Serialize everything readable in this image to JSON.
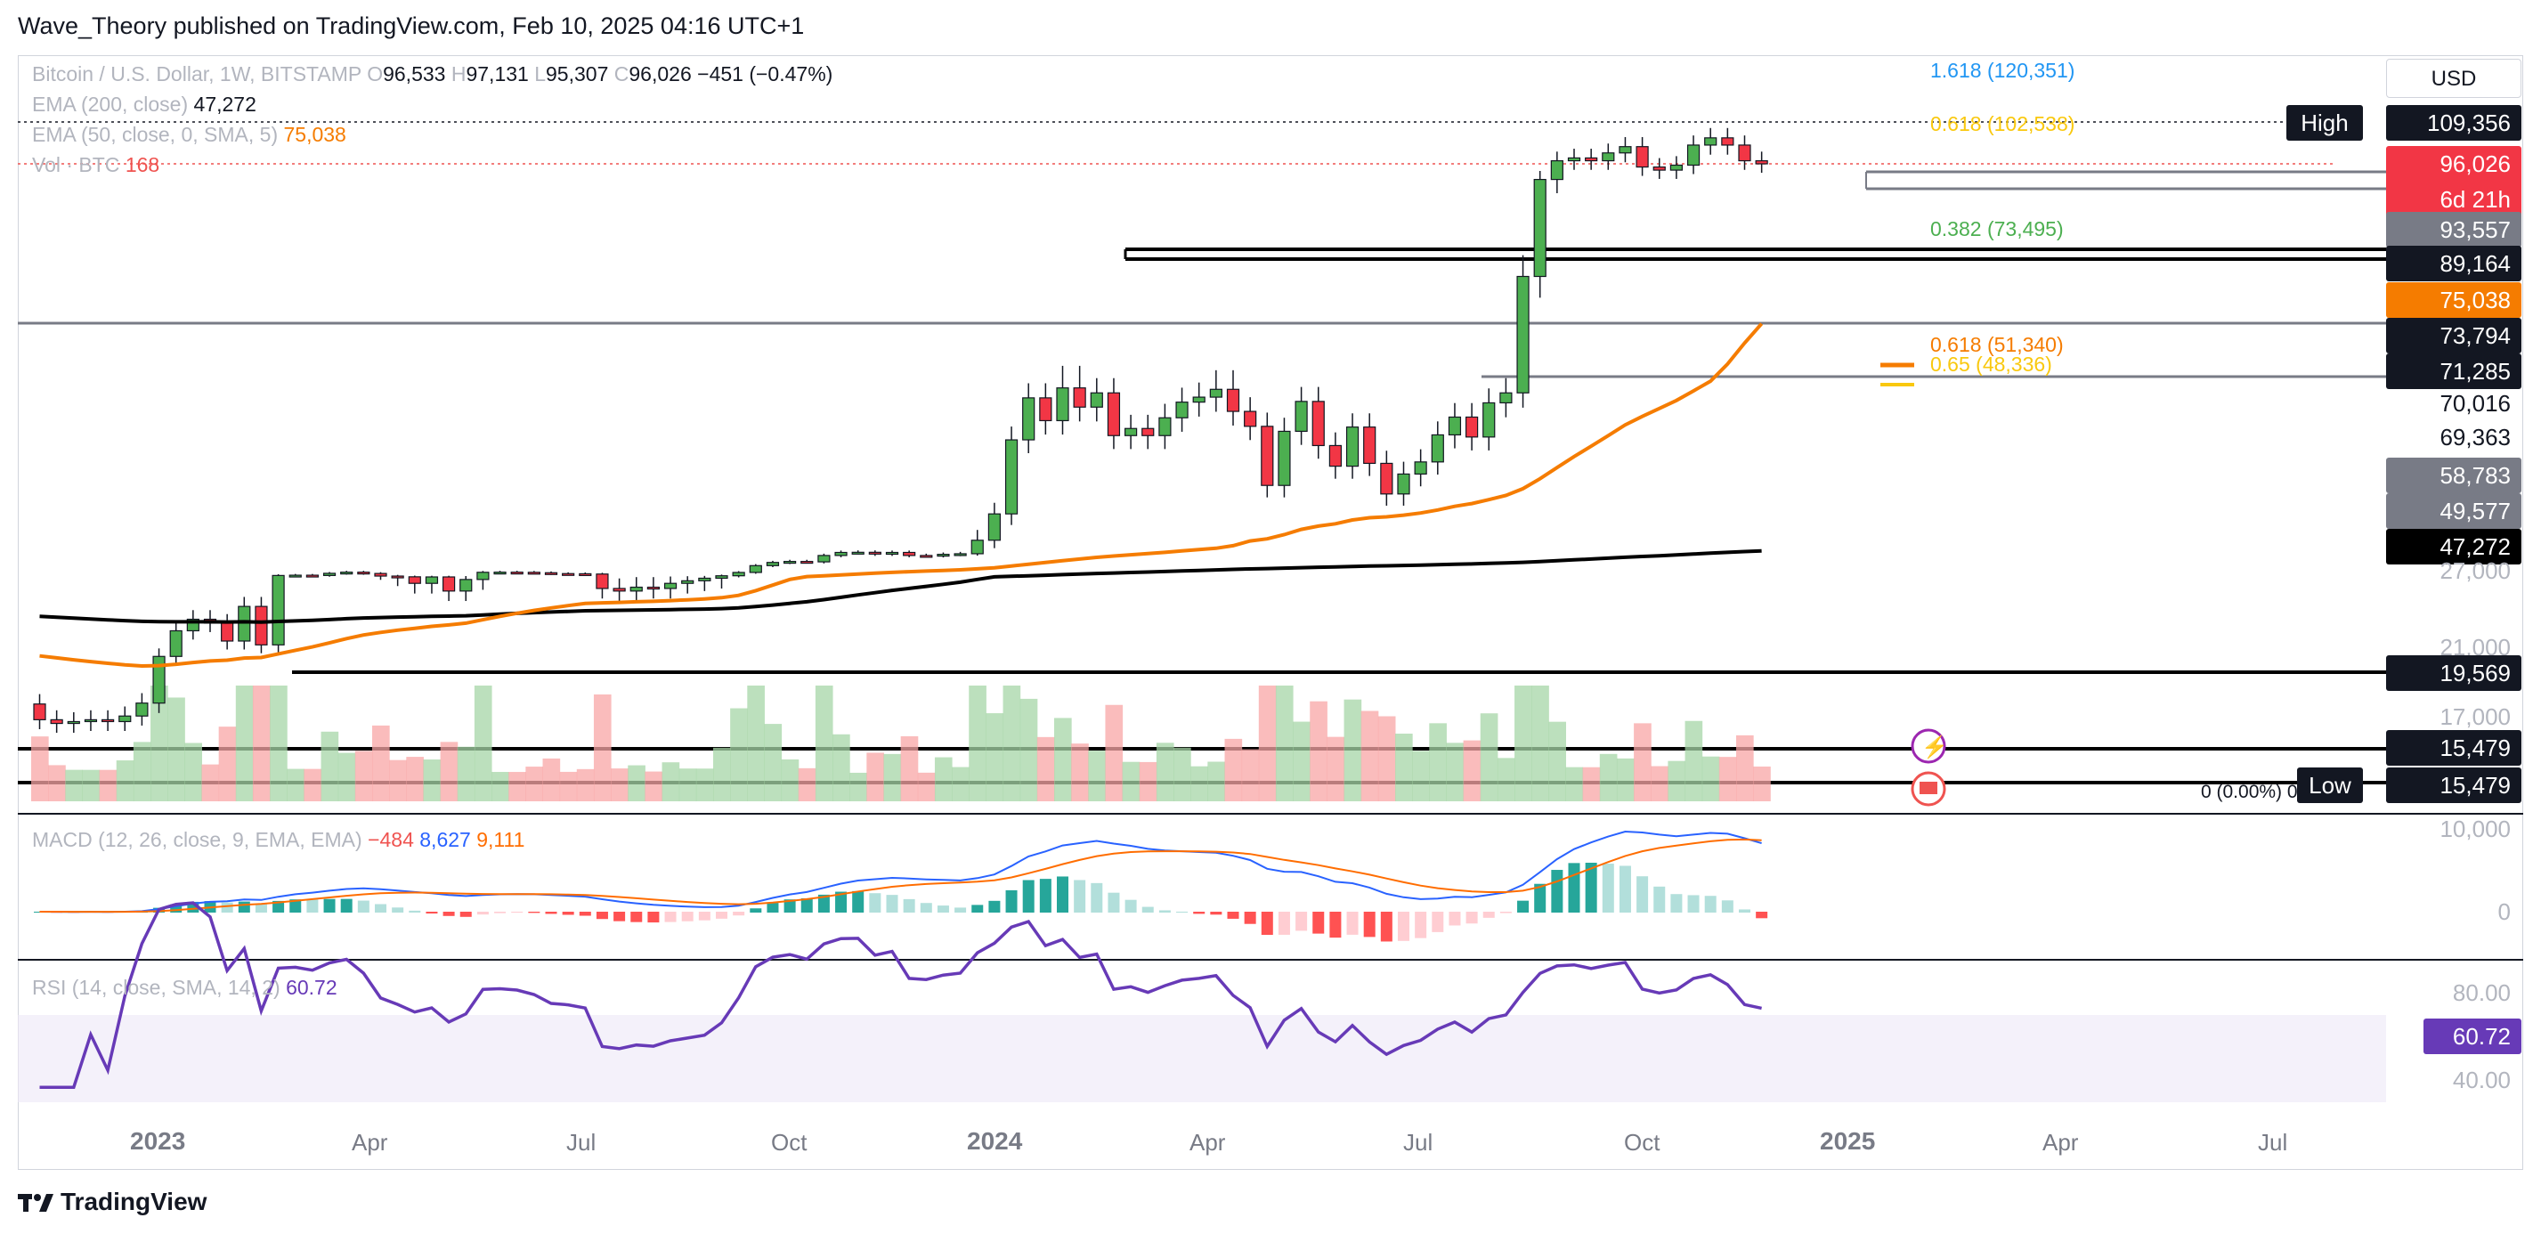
{
  "header": {
    "text": "Wave_Theory published on TradingView.com, Feb 10, 2025 04:16 UTC+1"
  },
  "currency": "USD",
  "legend": {
    "symbol": "Bitcoin / U.S. Dollar, 1W, BITSTAMP",
    "open_label": "O",
    "open": "96,533",
    "high_label": "H",
    "high": "97,131",
    "low_label": "L",
    "low": "95,307",
    "close_label": "C",
    "close": "96,026",
    "change": "−451 (−0.47%)",
    "ema200_label": "EMA (200, close)",
    "ema200_value": "47,272",
    "ema50_label": "EMA (50, close, 0, SMA, 5)",
    "ema50_value": "75,038",
    "vol_label": "Vol · BTC",
    "vol_value": "168"
  },
  "fib_labels": {
    "f1618": "1.618 (120,351)",
    "f0618a": "0.618 (102,538)",
    "f0382": "0.382 (73,495)",
    "f0618b": "0.618 (51,340)",
    "f065": "0.65 (48,336)"
  },
  "price_labels": {
    "high_tag": "High",
    "high_value": "109,356",
    "last": "96,026",
    "countdown": "6d 21h",
    "p93557": "93,557",
    "p89164": "89,164",
    "ema50": "75,038",
    "p73794": "73,794",
    "p71285": "71,285",
    "p70016": "70,016",
    "p69363": "69,363",
    "p58783": "58,783",
    "p49577": "49,577",
    "ema200": "47,272",
    "p19569": "19,569",
    "p15479a": "15,479",
    "low_tag": "Low",
    "p15479b": "15,479",
    "low_note": "0 (0.00%) 0"
  },
  "axis_labels": {
    "a27000": "27,000",
    "a21000": "21,000",
    "a17000": "17,000"
  },
  "macd": {
    "label": "MACD (12, 26, close, 9, EMA, EMA)",
    "hist": "−484",
    "macd": "8,627",
    "signal": "9,111",
    "axis_top": "10,000",
    "axis_zero": "0"
  },
  "rsi": {
    "label": "RSI (14, close, SMA, 14, 2)",
    "value": "60.72",
    "axis_80": "80.00",
    "axis_40": "40.00"
  },
  "time_axis": {
    "y2023": "2023",
    "apr1": "Apr",
    "jul1": "Jul",
    "oct1": "Oct",
    "y2024": "2024",
    "apr2": "Apr",
    "jul2": "Jul",
    "oct2": "Oct",
    "y2025": "2025",
    "apr3": "Apr",
    "jul3": "Jul"
  },
  "footer": {
    "brand": "TradingView"
  },
  "colors": {
    "up": "#26a69a",
    "down": "#ef5350",
    "ema50": "#f57c00",
    "ema200": "#000000",
    "fib_blue": "#2196f3",
    "fib_yellow": "#f9c80e",
    "fib_green": "#4caf50",
    "fib_orange": "#f57c00",
    "rsi": "#673ab7",
    "macd_line": "#2962ff",
    "signal_line": "#ff6d00"
  },
  "chart_data": {
    "type": "candlestick",
    "symbol": "Bitcoin / U.S. Dollar",
    "timeframe": "1W",
    "weekly_closes_usd": [
      17000,
      16800,
      16900,
      17000,
      16900,
      17200,
      17900,
      20800,
      22800,
      23700,
      23400,
      22000,
      24700,
      21700,
      28000,
      28200,
      28000,
      29500,
      30300,
      29400,
      27600,
      27100,
      26500,
      27000,
      25900,
      26800,
      30200,
      30300,
      30200,
      29900,
      29300,
      29200,
      29000,
      26100,
      25900,
      26200,
      26100,
      26500,
      26700,
      26900,
      27800,
      30100,
      34800,
      37000,
      37700,
      37400,
      41800,
      43900,
      44000,
      42800,
      43900,
      41800,
      41700,
      42600,
      43000,
      48300,
      52000,
      62400,
      68300,
      65100,
      69700,
      67000,
      69000,
      63000,
      64000,
      63000,
      65500,
      67700,
      68400,
      69500,
      66400,
      64300,
      56000,
      63600,
      67800,
      61600,
      58700,
      64200,
      59100,
      54800,
      57600,
      59300,
      63100,
      65600,
      62800,
      67600,
      69000,
      79000,
      91000,
      97000,
      97900,
      97000,
      99500,
      101500,
      95000,
      94000,
      95600,
      102000,
      104300,
      102000,
      97000,
      96026
    ],
    "ema200_latest": 47272,
    "ema50_latest": 75038,
    "fibonacci_levels": [
      {
        "ratio": 1.618,
        "price": 120351
      },
      {
        "ratio": 0.618,
        "price": 102538
      },
      {
        "ratio": 0.382,
        "price": 73495
      },
      {
        "ratio": 0.618,
        "price": 51340
      },
      {
        "ratio": 0.65,
        "price": 48336
      }
    ],
    "horizontal_levels": [
      109356,
      96026,
      93557,
      89164,
      73794,
      71285,
      70016,
      69363,
      58783,
      49577,
      19569,
      15479
    ],
    "macd": {
      "histogram": -484,
      "macd": 8627,
      "signal": 9111
    },
    "rsi": 60.72,
    "x_labels": [
      "2023",
      "Apr",
      "Jul",
      "Oct",
      "2024",
      "Apr",
      "Jul",
      "Oct",
      "2025",
      "Apr",
      "Jul"
    ]
  }
}
